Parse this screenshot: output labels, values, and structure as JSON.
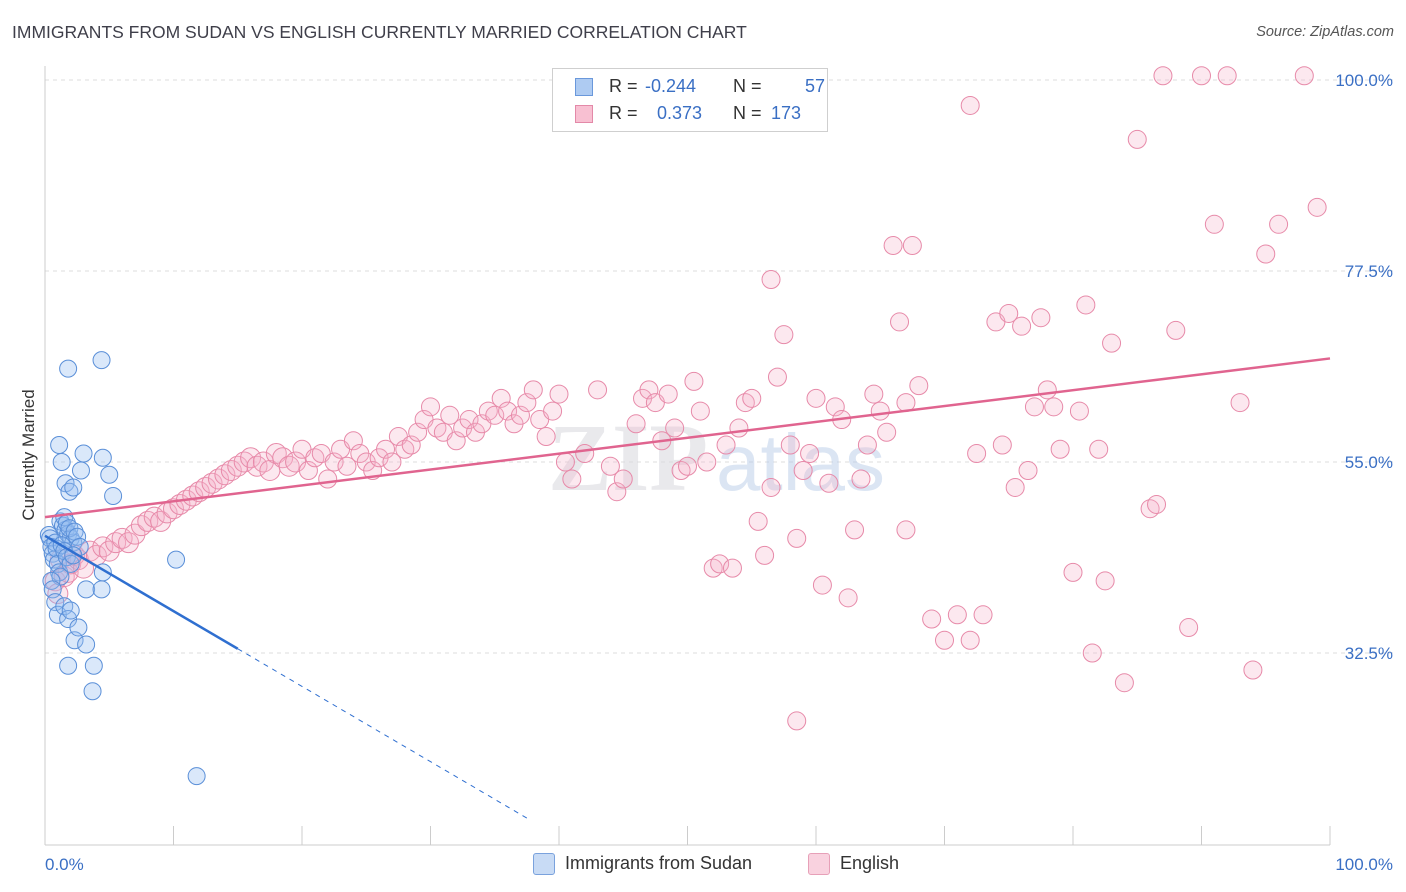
{
  "header": {
    "title": "IMMIGRANTS FROM SUDAN VS ENGLISH CURRENTLY MARRIED CORRELATION CHART",
    "source": "Source: ZipAtlas.com"
  },
  "watermark": {
    "zip": "ZIP",
    "atlas": "atlas"
  },
  "legend": {
    "r_label": "R =",
    "n_label": "N =",
    "rows": [
      {
        "r": "-0.244",
        "n": "57",
        "fill": "#aecbf2",
        "stroke": "#6a98db"
      },
      {
        "r": "0.373",
        "n": "173",
        "fill": "#f8c0d2",
        "stroke": "#e389a8"
      }
    ]
  },
  "bottom_legend": [
    {
      "label": "Immigrants from Sudan",
      "fill": "#c8dbf5",
      "stroke": "#7aa2dd"
    },
    {
      "label": "English",
      "fill": "#f9d2df",
      "stroke": "#e7a0b8"
    }
  ],
  "colors": {
    "blue_point_fill": "rgba(150,190,240,0.35)",
    "blue_point_stroke": "#5a8fd8",
    "pink_point_fill": "rgba(246,180,202,0.30)",
    "pink_point_stroke": "#e78aa9",
    "blue_line": "#2f6fd0",
    "pink_line": "#e0648f",
    "tick_label": "#3a6fc4",
    "grid": "#dedede"
  },
  "chart_data": {
    "type": "scatter",
    "title": "IMMIGRANTS FROM SUDAN VS ENGLISH CURRENTLY MARRIED CORRELATION CHART",
    "xlabel": "",
    "ylabel": "Currently Married",
    "xlim": [
      0,
      100
    ],
    "ylim": [
      10,
      102
    ],
    "x_tick_labels": [
      "0.0%",
      "100.0%"
    ],
    "y_ticks": [
      32.5,
      55.0,
      77.5,
      100.0
    ],
    "y_tick_labels": [
      "32.5%",
      "55.0%",
      "77.5%",
      "100.0%"
    ],
    "grid": true,
    "legend_position": "top-center",
    "series": [
      {
        "name": "Immigrants from Sudan",
        "r": -0.244,
        "n": 57,
        "trend": {
          "x0": 0,
          "y0": 46.3,
          "x1": 15,
          "y1": 33.0,
          "dashed_to_x": 37.5
        },
        "points": [
          [
            0.3,
            46.4
          ],
          [
            0.4,
            46.0
          ],
          [
            0.5,
            45.0
          ],
          [
            0.6,
            44.2
          ],
          [
            0.7,
            43.5
          ],
          [
            0.8,
            45.5
          ],
          [
            0.9,
            44.8
          ],
          [
            1.0,
            43.0
          ],
          [
            1.1,
            42.0
          ],
          [
            1.2,
            41.5
          ],
          [
            0.5,
            41.0
          ],
          [
            0.6,
            40.0
          ],
          [
            0.8,
            38.5
          ],
          [
            1.0,
            37.0
          ],
          [
            1.2,
            48.0
          ],
          [
            1.4,
            47.5
          ],
          [
            1.6,
            47.0
          ],
          [
            1.8,
            46.5
          ],
          [
            2.0,
            46.0
          ],
          [
            2.2,
            45.5
          ],
          [
            1.5,
            48.5
          ],
          [
            1.7,
            47.8
          ],
          [
            1.9,
            47.2
          ],
          [
            2.3,
            46.8
          ],
          [
            2.5,
            46.2
          ],
          [
            2.7,
            45.0
          ],
          [
            1.3,
            45.2
          ],
          [
            1.5,
            44.5
          ],
          [
            1.7,
            43.8
          ],
          [
            2.0,
            43.0
          ],
          [
            2.2,
            44.0
          ],
          [
            1.1,
            57.0
          ],
          [
            1.3,
            55.0
          ],
          [
            1.6,
            52.5
          ],
          [
            1.9,
            51.5
          ],
          [
            2.2,
            52.0
          ],
          [
            2.8,
            54.0
          ],
          [
            3.0,
            56.0
          ],
          [
            4.5,
            55.5
          ],
          [
            5.0,
            53.5
          ],
          [
            5.3,
            51.0
          ],
          [
            1.8,
            66.0
          ],
          [
            4.4,
            67.0
          ],
          [
            1.5,
            38.0
          ],
          [
            1.8,
            36.5
          ],
          [
            2.0,
            37.5
          ],
          [
            2.3,
            34.0
          ],
          [
            2.6,
            35.5
          ],
          [
            3.2,
            33.5
          ],
          [
            1.8,
            31.0
          ],
          [
            3.8,
            31.0
          ],
          [
            3.7,
            28.0
          ],
          [
            3.2,
            40.0
          ],
          [
            4.4,
            40.0
          ],
          [
            4.5,
            42.0
          ],
          [
            10.2,
            43.5
          ],
          [
            11.8,
            18.0
          ]
        ]
      },
      {
        "name": "English",
        "r": 0.373,
        "n": 173,
        "trend": {
          "x0": 0,
          "y0": 48.5,
          "x1": 100,
          "y1": 67.2
        },
        "points": [
          [
            0.8,
            41.0
          ],
          [
            1.0,
            39.5
          ],
          [
            1.2,
            43.5
          ],
          [
            1.5,
            41.5
          ],
          [
            1.8,
            42.0
          ],
          [
            2.0,
            43.0
          ],
          [
            2.3,
            44.0
          ],
          [
            2.6,
            43.5
          ],
          [
            3.0,
            42.5
          ],
          [
            3.5,
            44.5
          ],
          [
            4.0,
            44.0
          ],
          [
            4.5,
            45.0
          ],
          [
            5.0,
            44.5
          ],
          [
            5.5,
            45.5
          ],
          [
            6.0,
            46.0
          ],
          [
            6.5,
            45.5
          ],
          [
            7.0,
            46.5
          ],
          [
            7.5,
            47.5
          ],
          [
            8.0,
            48.0
          ],
          [
            8.5,
            48.5
          ],
          [
            9.0,
            48.0
          ],
          [
            9.5,
            49.0
          ],
          [
            10.0,
            49.5
          ],
          [
            10.5,
            50.0
          ],
          [
            11.0,
            50.5
          ],
          [
            11.5,
            51.0
          ],
          [
            12.0,
            51.5
          ],
          [
            12.5,
            52.0
          ],
          [
            13.0,
            52.5
          ],
          [
            13.5,
            53.0
          ],
          [
            14.0,
            53.5
          ],
          [
            14.5,
            54.0
          ],
          [
            15.0,
            54.5
          ],
          [
            15.5,
            55.0
          ],
          [
            16.0,
            55.5
          ],
          [
            16.5,
            54.5
          ],
          [
            17.0,
            55.0
          ],
          [
            17.5,
            54.0
          ],
          [
            18.0,
            56.0
          ],
          [
            18.5,
            55.5
          ],
          [
            19.0,
            54.5
          ],
          [
            19.5,
            55.0
          ],
          [
            20.0,
            56.5
          ],
          [
            20.5,
            54.0
          ],
          [
            21.0,
            55.5
          ],
          [
            21.5,
            56.0
          ],
          [
            22.0,
            53.0
          ],
          [
            22.5,
            55.0
          ],
          [
            23.0,
            56.5
          ],
          [
            23.5,
            54.5
          ],
          [
            24.0,
            57.5
          ],
          [
            24.5,
            56.0
          ],
          [
            25.0,
            55.0
          ],
          [
            25.5,
            54.0
          ],
          [
            26.0,
            55.5
          ],
          [
            26.5,
            56.5
          ],
          [
            27.0,
            55.0
          ],
          [
            27.5,
            58.0
          ],
          [
            28.0,
            56.5
          ],
          [
            28.5,
            57.0
          ],
          [
            29.0,
            58.5
          ],
          [
            29.5,
            60.0
          ],
          [
            30.0,
            61.5
          ],
          [
            30.5,
            59.0
          ],
          [
            31.0,
            58.5
          ],
          [
            31.5,
            60.5
          ],
          [
            32.0,
            57.5
          ],
          [
            32.5,
            59.0
          ],
          [
            33.0,
            60.0
          ],
          [
            33.5,
            58.5
          ],
          [
            34.0,
            59.5
          ],
          [
            34.5,
            61.0
          ],
          [
            35.0,
            60.5
          ],
          [
            35.5,
            62.5
          ],
          [
            36.0,
            61.0
          ],
          [
            36.5,
            59.5
          ],
          [
            37.0,
            60.5
          ],
          [
            37.5,
            62.0
          ],
          [
            38.0,
            63.5
          ],
          [
            38.5,
            60.0
          ],
          [
            39.0,
            58.0
          ],
          [
            39.5,
            61.0
          ],
          [
            40.0,
            63.0
          ],
          [
            40.5,
            55.0
          ],
          [
            41.0,
            53.0
          ],
          [
            42.0,
            56.0
          ],
          [
            43.0,
            63.5
          ],
          [
            44.0,
            54.5
          ],
          [
            44.5,
            51.5
          ],
          [
            45.0,
            53.0
          ],
          [
            46.0,
            59.5
          ],
          [
            46.5,
            62.5
          ],
          [
            47.0,
            63.5
          ],
          [
            47.5,
            62.0
          ],
          [
            48.0,
            57.5
          ],
          [
            48.5,
            63.0
          ],
          [
            49.0,
            59.0
          ],
          [
            49.5,
            54.0
          ],
          [
            50.0,
            54.5
          ],
          [
            50.5,
            64.5
          ],
          [
            51.0,
            61.0
          ],
          [
            51.5,
            55.0
          ],
          [
            52.0,
            42.5
          ],
          [
            52.5,
            43.0
          ],
          [
            53.0,
            57.0
          ],
          [
            53.5,
            42.5
          ],
          [
            54.0,
            59.0
          ],
          [
            54.5,
            62.0
          ],
          [
            55.0,
            62.5
          ],
          [
            55.5,
            48.0
          ],
          [
            56.0,
            44.0
          ],
          [
            56.5,
            52.0
          ],
          [
            57.0,
            65.0
          ],
          [
            57.5,
            70.0
          ],
          [
            58.0,
            57.0
          ],
          [
            58.5,
            46.0
          ],
          [
            59.0,
            54.0
          ],
          [
            59.5,
            56.0
          ],
          [
            60.0,
            62.5
          ],
          [
            60.5,
            40.5
          ],
          [
            61.0,
            52.5
          ],
          [
            61.5,
            61.5
          ],
          [
            62.0,
            60.0
          ],
          [
            62.5,
            39.0
          ],
          [
            63.0,
            47.0
          ],
          [
            63.5,
            53.0
          ],
          [
            64.0,
            57.0
          ],
          [
            64.5,
            63.0
          ],
          [
            65.0,
            61.0
          ],
          [
            65.5,
            58.5
          ],
          [
            66.0,
            80.5
          ],
          [
            66.5,
            71.5
          ],
          [
            67.0,
            62.0
          ],
          [
            67.5,
            80.5
          ],
          [
            68.0,
            64.0
          ],
          [
            69.0,
            36.5
          ],
          [
            70.0,
            34.0
          ],
          [
            71.0,
            37.0
          ],
          [
            72.0,
            97.0
          ],
          [
            72.5,
            56.0
          ],
          [
            73.0,
            37.0
          ],
          [
            74.0,
            71.5
          ],
          [
            74.5,
            57.0
          ],
          [
            75.0,
            72.5
          ],
          [
            75.5,
            52.0
          ],
          [
            76.0,
            71.0
          ],
          [
            77.0,
            61.5
          ],
          [
            77.5,
            72.0
          ],
          [
            78.0,
            63.5
          ],
          [
            78.5,
            61.5
          ],
          [
            79.0,
            56.5
          ],
          [
            80.0,
            42.0
          ],
          [
            80.5,
            61.0
          ],
          [
            81.0,
            73.5
          ],
          [
            81.5,
            32.5
          ],
          [
            82.0,
            56.5
          ],
          [
            82.5,
            41.0
          ],
          [
            83.0,
            69.0
          ],
          [
            84.0,
            29.0
          ],
          [
            85.0,
            93.0
          ],
          [
            86.0,
            49.5
          ],
          [
            86.5,
            50.0
          ],
          [
            87.0,
            100.5
          ],
          [
            88.0,
            70.5
          ],
          [
            89.0,
            35.5
          ],
          [
            90.0,
            100.5
          ],
          [
            91.0,
            83.0
          ],
          [
            92.0,
            100.5
          ],
          [
            93.0,
            62.0
          ],
          [
            94.0,
            30.5
          ],
          [
            95.0,
            79.5
          ],
          [
            96.0,
            83.0
          ],
          [
            98.0,
            100.5
          ],
          [
            99.0,
            85.0
          ],
          [
            56.5,
            76.5
          ],
          [
            58.5,
            24.5
          ],
          [
            67.0,
            47.0
          ],
          [
            72.0,
            34.0
          ],
          [
            76.5,
            54.0
          ]
        ]
      }
    ]
  }
}
